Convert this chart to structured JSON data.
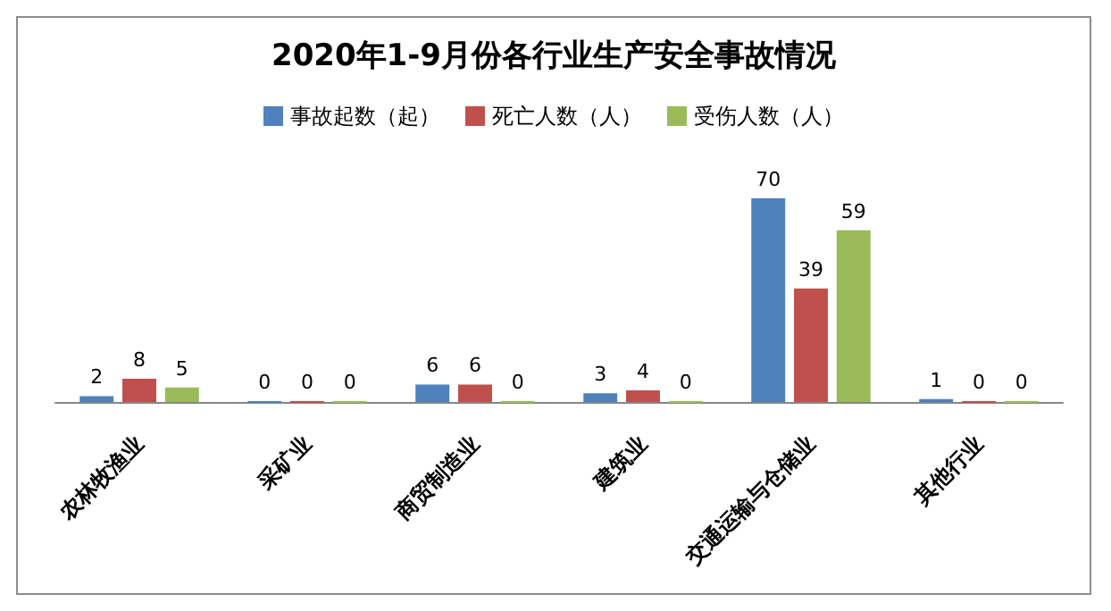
{
  "chart_data": {
    "type": "bar",
    "title": "2020年1-9月份各行业生产安全事故情况",
    "categories": [
      "农林牧渔业",
      "采矿业",
      "商贸制造业",
      "建筑业",
      "交通运输与仓储业",
      "其他行业"
    ],
    "series": [
      {
        "name": "事故起数（起）",
        "color": "#4f81bd",
        "values": [
          2,
          0,
          6,
          3,
          70,
          1
        ]
      },
      {
        "name": "死亡人数（人）",
        "color": "#c0504d",
        "values": [
          8,
          0,
          6,
          4,
          39,
          0
        ]
      },
      {
        "name": "受伤人数（人）",
        "color": "#9bbb59",
        "values": [
          5,
          0,
          0,
          0,
          59,
          0
        ]
      }
    ],
    "data_labels": true,
    "legend": "top",
    "tick_labels": "x"
  }
}
